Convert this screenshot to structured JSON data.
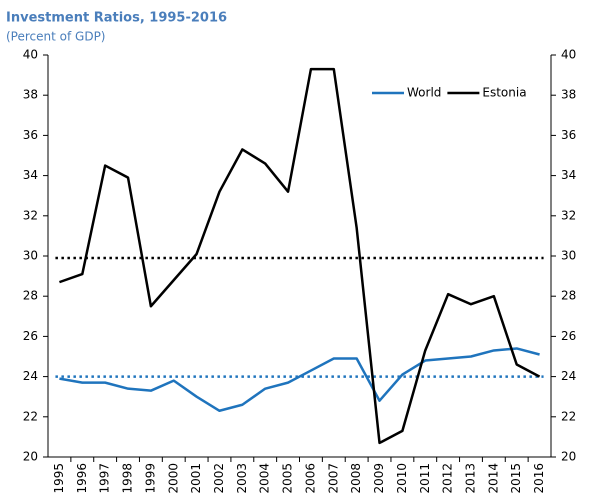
{
  "chart_data": {
    "type": "line",
    "title": "Investment Ratios, 1995-2016",
    "subtitle": "(Percent of GDP)",
    "categories": [
      "1995",
      "1996",
      "1997",
      "1998",
      "1999",
      "2000",
      "2001",
      "2002",
      "2003",
      "2004",
      "2005",
      "2006",
      "2007",
      "2008",
      "2009",
      "2010",
      "2011",
      "2012",
      "2013",
      "2014",
      "2015",
      "2016"
    ],
    "series": [
      {
        "name": "World",
        "color": "#1f74bd",
        "values": [
          23.9,
          23.7,
          23.7,
          23.4,
          23.3,
          23.8,
          23.0,
          22.3,
          22.6,
          23.4,
          23.7,
          24.3,
          24.9,
          24.9,
          22.8,
          24.1,
          24.8,
          24.9,
          25.0,
          25.3,
          25.4,
          25.1
        ]
      },
      {
        "name": "Estonia",
        "color": "#000000",
        "values": [
          28.7,
          29.1,
          34.5,
          33.9,
          27.5,
          28.8,
          30.1,
          33.2,
          35.3,
          34.6,
          33.2,
          39.3,
          39.3,
          31.4,
          20.7,
          21.3,
          25.3,
          28.1,
          27.6,
          28.0,
          24.6,
          24.0
        ]
      }
    ],
    "reference_lines": [
      {
        "value": 24.0,
        "color": "#1f74bd"
      },
      {
        "value": 29.9,
        "color": "#000000"
      }
    ],
    "ylim": [
      20,
      40
    ],
    "yticks": [
      20,
      22,
      24,
      26,
      28,
      30,
      32,
      34,
      36,
      38,
      40
    ],
    "y2lim": [
      20,
      40
    ],
    "y2ticks": [
      20,
      22,
      24,
      26,
      28,
      30,
      32,
      34,
      36,
      38,
      40
    ],
    "legend": "upper right"
  }
}
